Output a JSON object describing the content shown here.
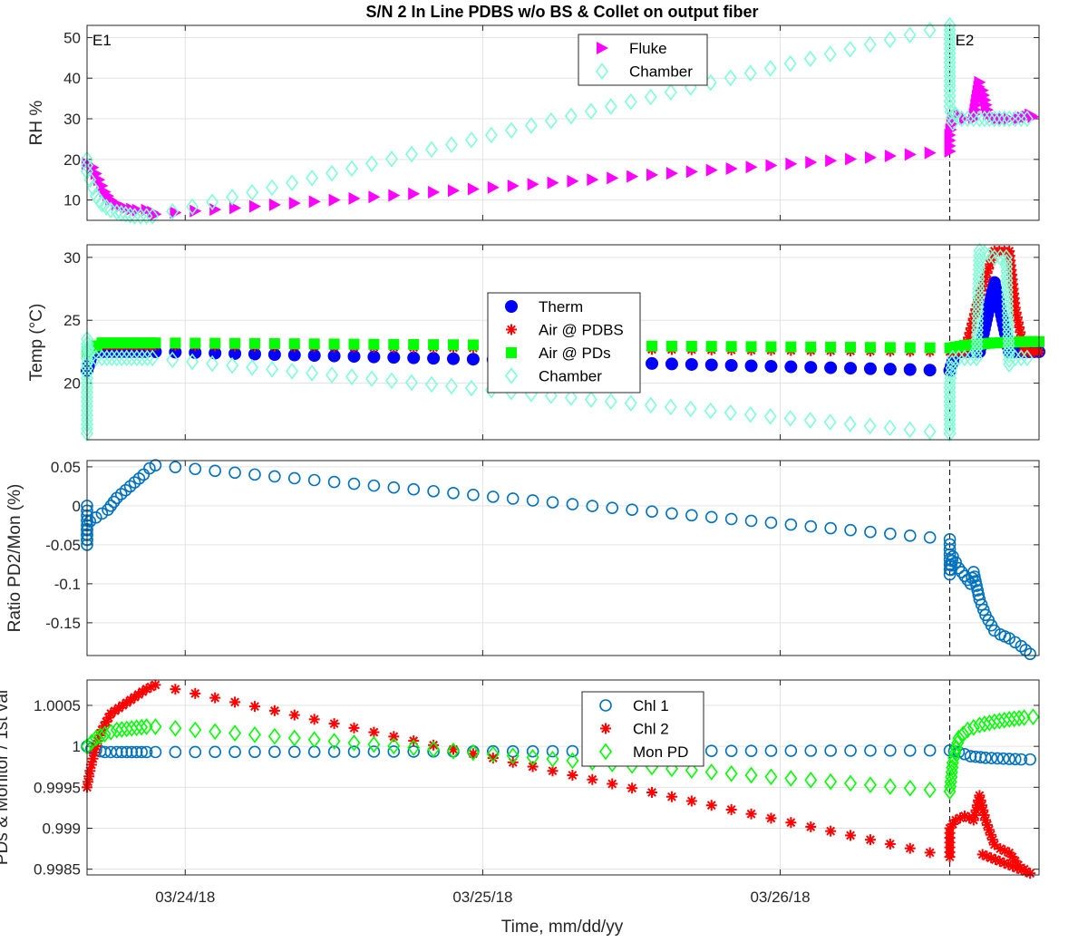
{
  "figure": {
    "title": "S/N 2 In Line PDBS w/o BS & Collet on output fiber",
    "xlabel": "Time, mm/dd/yy"
  },
  "colors": {
    "fluke": "#ff00ff",
    "chamber": "#7fffd4",
    "therm": "#0000ff",
    "air_pdbs": "#ff0000",
    "air_pds": "#00ff00",
    "ratio": "#0072bd",
    "chl1": "#0072bd",
    "chl2": "#ff0000",
    "mon": "#00ff00",
    "grid": "#e3e3e3",
    "axis": "#262626"
  },
  "chart_data": [
    {
      "type": "scatter",
      "ylabel": "RH %",
      "xlim": [
        0,
        3.2
      ],
      "x_ticks": [
        0.33,
        1.33,
        2.33
      ],
      "x_ticklabels": [
        "03/24/18",
        "03/25/18",
        "03/26/18"
      ],
      "ylim": [
        5,
        53
      ],
      "y_ticks": [
        10,
        20,
        30,
        40,
        50
      ],
      "y_ticklabels": [
        "10",
        "20",
        "30",
        "40",
        "50"
      ],
      "event_lines": [
        {
          "x": 0.0,
          "label": "E1"
        },
        {
          "x": 2.9,
          "label": "E2"
        }
      ],
      "legend": {
        "position": "top-center"
      },
      "series": [
        {
          "name": "Fluke",
          "marker": "triangle-right",
          "color": "#ff00ff",
          "points": [
            [
              0.0,
              19
            ],
            [
              0.02,
              18
            ],
            [
              0.04,
              15
            ],
            [
              0.06,
              12
            ],
            [
              0.08,
              10
            ],
            [
              0.1,
              9
            ],
            [
              0.13,
              8
            ],
            [
              0.17,
              7.5
            ],
            [
              0.2,
              7.5
            ],
            [
              0.22,
              7
            ],
            [
              0.23,
              6.5
            ],
            [
              2.9,
              22
            ],
            [
              2.9,
              26
            ],
            [
              2.91,
              30
            ],
            [
              2.93,
              31
            ],
            [
              2.95,
              30
            ],
            [
              2.98,
              30
            ],
            [
              3.0,
              39
            ],
            [
              3.01,
              37
            ],
            [
              3.03,
              31
            ],
            [
              3.06,
              30
            ],
            [
              3.1,
              30
            ],
            [
              3.13,
              30
            ],
            [
              3.16,
              30.5
            ],
            [
              3.17,
              31
            ],
            [
              3.18,
              30.5
            ]
          ]
        },
        {
          "name": "Chamber",
          "marker": "diamond",
          "color": "#7fffd4",
          "points": [
            [
              0.0,
              20
            ],
            [
              0.0,
              17
            ],
            [
              0.01,
              15
            ],
            [
              0.02,
              13
            ],
            [
              0.03,
              11
            ],
            [
              0.05,
              9
            ],
            [
              0.08,
              7.5
            ],
            [
              0.1,
              7
            ],
            [
              0.13,
              6.5
            ],
            [
              0.16,
              6
            ],
            [
              0.2,
              6
            ],
            [
              0.22,
              6
            ],
            [
              2.9,
              53
            ],
            [
              2.9,
              45
            ],
            [
              2.9,
              37
            ],
            [
              2.9,
              33
            ],
            [
              2.91,
              29
            ],
            [
              2.92,
              31
            ],
            [
              2.94,
              30
            ],
            [
              2.96,
              30
            ],
            [
              3.0,
              30
            ],
            [
              3.05,
              30
            ],
            [
              3.1,
              30
            ],
            [
              3.14,
              30
            ],
            [
              3.16,
              30
            ]
          ]
        }
      ]
    },
    {
      "type": "scatter",
      "ylabel": "Temp (°C)",
      "xlim": [
        0,
        3.2
      ],
      "x_ticks": [
        0.33,
        1.33,
        2.33
      ],
      "ylim": [
        15.5,
        31
      ],
      "y_ticks": [
        20,
        25,
        30
      ],
      "y_ticklabels": [
        "20",
        "25",
        "30"
      ],
      "event_lines": [
        {
          "x": 0.0
        },
        {
          "x": 2.9
        }
      ],
      "legend": {
        "position": "center"
      },
      "series": [
        {
          "name": "Therm",
          "marker": "circle-filled",
          "color": "#0000ff",
          "points": [
            [
              0.0,
              21
            ],
            [
              0.02,
              22.5
            ],
            [
              0.1,
              22.5
            ],
            [
              0.2,
              22.5
            ],
            [
              0.23,
              22.5
            ],
            [
              2.9,
              21
            ],
            [
              2.92,
              22.5
            ],
            [
              3.0,
              22.5
            ],
            [
              3.05,
              28
            ],
            [
              3.1,
              22.5
            ],
            [
              3.2,
              22.5
            ]
          ]
        },
        {
          "name": "Air @ PDBS",
          "marker": "asterisk",
          "color": "#ff0000",
          "points": [
            [
              0.0,
              22.5
            ],
            [
              0.05,
              23
            ],
            [
              0.15,
              23
            ],
            [
              0.23,
              23
            ],
            [
              2.9,
              22.5
            ],
            [
              2.95,
              22.5
            ],
            [
              3.0,
              27
            ],
            [
              3.05,
              30.5
            ],
            [
              3.1,
              30.5
            ],
            [
              3.12,
              26
            ],
            [
              3.15,
              22.5
            ],
            [
              3.2,
              22.5
            ]
          ]
        },
        {
          "name": "Air @ PDs",
          "marker": "square-filled",
          "color": "#00ff00",
          "points": [
            [
              0.0,
              22.5
            ],
            [
              0.05,
              23.2
            ],
            [
              0.15,
              23.2
            ],
            [
              0.23,
              23.2
            ],
            [
              2.9,
              22.8
            ],
            [
              2.95,
              23
            ],
            [
              3.05,
              23.2
            ],
            [
              3.15,
              23.3
            ],
            [
              3.2,
              23.3
            ]
          ]
        },
        {
          "name": "Chamber",
          "marker": "diamond",
          "color": "#7fffd4",
          "points": [
            [
              0.0,
              16
            ],
            [
              0.0,
              20
            ],
            [
              0.0,
              23.5
            ],
            [
              0.01,
              22
            ],
            [
              0.05,
              22
            ],
            [
              0.1,
              22
            ],
            [
              0.15,
              22
            ],
            [
              0.22,
              22
            ],
            [
              2.9,
              16
            ],
            [
              2.9,
              20
            ],
            [
              2.91,
              22
            ],
            [
              2.95,
              22
            ],
            [
              2.99,
              22
            ],
            [
              3.0,
              30.5
            ],
            [
              3.05,
              30
            ],
            [
              3.09,
              30
            ],
            [
              3.1,
              21.5
            ],
            [
              3.12,
              22
            ],
            [
              3.16,
              22
            ]
          ]
        }
      ]
    },
    {
      "type": "scatter",
      "ylabel": "Ratio PD2/Mon (%)",
      "xlim": [
        0,
        3.2
      ],
      "x_ticks": [
        0.33,
        1.33,
        2.33
      ],
      "ylim": [
        -0.192,
        0.058
      ],
      "y_ticks": [
        -0.15,
        -0.1,
        -0.05,
        0,
        0.05
      ],
      "y_ticklabels": [
        "-0.15",
        "-0.1",
        "-0.05",
        "0",
        "0.05"
      ],
      "event_lines": [
        {
          "x": 0.0
        },
        {
          "x": 2.9
        }
      ],
      "series": [
        {
          "name": "",
          "marker": "circle-open",
          "color": "#0072bd",
          "points": [
            [
              0.0,
              0.0
            ],
            [
              0.0,
              -0.05
            ],
            [
              0.0,
              -0.03
            ],
            [
              0.01,
              -0.02
            ],
            [
              0.03,
              -0.015
            ],
            [
              0.05,
              -0.01
            ],
            [
              0.07,
              -0.005
            ],
            [
              0.1,
              0.01
            ],
            [
              0.13,
              0.02
            ],
            [
              0.16,
              0.03
            ],
            [
              0.19,
              0.04
            ],
            [
              0.21,
              0.048
            ],
            [
              0.23,
              0.052
            ],
            [
              2.9,
              -0.043
            ],
            [
              2.9,
              -0.088
            ],
            [
              2.91,
              -0.065
            ],
            [
              2.93,
              -0.08
            ],
            [
              2.95,
              -0.09
            ],
            [
              2.97,
              -0.1
            ],
            [
              2.98,
              -0.085
            ],
            [
              3.0,
              -0.12
            ],
            [
              3.02,
              -0.14
            ],
            [
              3.05,
              -0.16
            ],
            [
              3.07,
              -0.165
            ],
            [
              3.1,
              -0.17
            ],
            [
              3.12,
              -0.175
            ],
            [
              3.14,
              -0.18
            ],
            [
              3.17,
              -0.19
            ]
          ]
        }
      ]
    },
    {
      "type": "scatter",
      "ylabel": "PDs & Monitor / 1st val",
      "xlim": [
        0,
        3.2
      ],
      "x_ticks": [
        0.33,
        1.33,
        2.33
      ],
      "x_ticklabels": [
        "03/24/18",
        "03/25/18",
        "03/26/18"
      ],
      "ylim": [
        0.99843,
        1.00081
      ],
      "y_ticks": [
        0.9985,
        0.999,
        0.9995,
        1.0,
        1.0005
      ],
      "y_ticklabels": [
        "0.9985",
        "0.999",
        "0.9995",
        "1",
        "1.0005"
      ],
      "event_lines": [
        {
          "x": 0.0
        },
        {
          "x": 2.9
        }
      ],
      "legend": {
        "position": "top-center"
      },
      "series": [
        {
          "name": "Chl 1",
          "marker": "circle-open",
          "color": "#0072bd",
          "points": [
            [
              0.0,
              1.0
            ],
            [
              0.03,
              0.99995
            ],
            [
              0.06,
              0.99993
            ],
            [
              0.1,
              0.99993
            ],
            [
              0.15,
              0.99993
            ],
            [
              0.2,
              0.99993
            ],
            [
              0.23,
              0.99993
            ],
            [
              2.9,
              0.99995
            ],
            [
              2.93,
              0.99993
            ],
            [
              2.97,
              0.99988
            ],
            [
              3.02,
              0.99986
            ],
            [
              3.08,
              0.99985
            ],
            [
              3.14,
              0.99984
            ],
            [
              3.17,
              0.99984
            ]
          ]
        },
        {
          "name": "Chl 2",
          "marker": "asterisk",
          "color": "#ff0000",
          "points": [
            [
              0.0,
              0.9995
            ],
            [
              0.01,
              0.9997
            ],
            [
              0.02,
              0.99985
            ],
            [
              0.03,
              1.0
            ],
            [
              0.05,
              1.0002
            ],
            [
              0.08,
              1.0004
            ],
            [
              0.12,
              1.0005
            ],
            [
              0.16,
              1.0006
            ],
            [
              0.2,
              1.0007
            ],
            [
              0.23,
              1.00075
            ],
            [
              2.9,
              0.99865
            ],
            [
              2.9,
              0.999
            ],
            [
              2.92,
              0.9991
            ],
            [
              2.95,
              0.99915
            ],
            [
              2.98,
              0.9991
            ],
            [
              3.0,
              0.9994
            ],
            [
              3.02,
              0.9991
            ],
            [
              3.05,
              0.9988
            ],
            [
              3.07,
              0.99875
            ],
            [
              3.1,
              0.9987
            ],
            [
              3.13,
              0.99855
            ],
            [
              3.15,
              0.9985
            ],
            [
              3.17,
              0.99845
            ],
            [
              3.01,
              0.99868
            ]
          ]
        },
        {
          "name": "Mon PD",
          "marker": "diamond",
          "color": "#00ff00",
          "points": [
            [
              0.0,
              1.0
            ],
            [
              0.03,
              1.0001
            ],
            [
              0.06,
              1.00015
            ],
            [
              0.1,
              1.0002
            ],
            [
              0.15,
              1.00022
            ],
            [
              0.2,
              1.00024
            ],
            [
              0.23,
              1.00024
            ],
            [
              2.9,
              0.99945
            ],
            [
              2.91,
              0.9998
            ],
            [
              2.93,
              1.0001
            ],
            [
              2.96,
              1.0002
            ],
            [
              3.0,
              1.00026
            ],
            [
              3.05,
              1.0003
            ],
            [
              3.1,
              1.00033
            ],
            [
              3.15,
              1.00035
            ],
            [
              3.18,
              1.00036
            ]
          ]
        }
      ]
    }
  ]
}
